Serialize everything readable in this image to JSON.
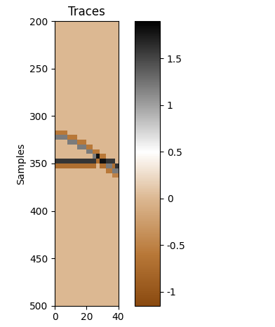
{
  "chart_data": {
    "type": "heatmap",
    "title": "Traces",
    "y_label": "Samples",
    "x_edges": [
      0,
      2,
      4,
      6,
      8,
      10,
      12,
      14,
      16,
      18,
      20,
      22,
      24,
      26,
      28,
      30,
      32,
      34,
      36,
      38,
      40
    ],
    "y_edges": [
      200,
      250,
      300,
      310,
      315,
      320,
      325,
      330,
      335,
      340,
      345,
      350,
      355,
      360,
      365,
      370,
      400,
      450,
      500
    ],
    "cells": [
      [
        0,
        0,
        0,
        0,
        0,
        0,
        0,
        0,
        0,
        0,
        0,
        0,
        0,
        0,
        0,
        0,
        0,
        0,
        0,
        0
      ],
      [
        0,
        0,
        0,
        0,
        0,
        0,
        0,
        0,
        0,
        0,
        0,
        0,
        0,
        0,
        0,
        0,
        0,
        0,
        0,
        0
      ],
      [
        0,
        0,
        0,
        0,
        0,
        0,
        0,
        0,
        0,
        0,
        0,
        0,
        0,
        0,
        0,
        0,
        0,
        0,
        0,
        0
      ],
      [
        0,
        0,
        0,
        0,
        0,
        0,
        0,
        0,
        0,
        0,
        0,
        0,
        0,
        0,
        0,
        0,
        0,
        0,
        0,
        0
      ],
      [
        -0.6,
        -0.6,
        -0.6,
        -0.6,
        0,
        0,
        0,
        0,
        0,
        0,
        0,
        0,
        0,
        0,
        0,
        0,
        0,
        0,
        0,
        0
      ],
      [
        1.2,
        1.2,
        1.2,
        1.2,
        -0.6,
        -0.6,
        -0.6,
        0,
        0,
        0,
        0,
        0,
        0,
        0,
        0,
        0,
        0,
        0,
        0,
        0
      ],
      [
        0,
        0,
        0,
        0,
        1.2,
        1.2,
        1.2,
        -0.6,
        -0.6,
        -0.6,
        0,
        0,
        0,
        0,
        0,
        0,
        0,
        0,
        0,
        0
      ],
      [
        0,
        0,
        0,
        0,
        0,
        0,
        0,
        1.2,
        1.2,
        1.2,
        -0.6,
        -0.6,
        0,
        0,
        0,
        0,
        0,
        0,
        0,
        0
      ],
      [
        0,
        0,
        0,
        0,
        0,
        0,
        0,
        0,
        0,
        0,
        1.2,
        1.2,
        -0.6,
        -0.6,
        0,
        0,
        0,
        0,
        0,
        0
      ],
      [
        0,
        0,
        0,
        0,
        0,
        0,
        0,
        0,
        0,
        0,
        0,
        0,
        1.2,
        1.8,
        -0.6,
        -0.6,
        0,
        0,
        0,
        0
      ],
      [
        1.6,
        1.6,
        1.6,
        1.6,
        1.6,
        1.6,
        1.6,
        1.6,
        1.6,
        1.6,
        1.6,
        1.6,
        1.6,
        -0.7,
        1.8,
        1.8,
        1.6,
        1.6,
        1.6,
        0
      ],
      [
        -0.7,
        -0.7,
        -0.7,
        -0.7,
        -0.7,
        -0.7,
        -0.7,
        -0.7,
        -0.7,
        -0.7,
        -0.7,
        -0.7,
        -0.7,
        0,
        -0.7,
        -0.7,
        1.2,
        1.2,
        -0.7,
        1.6
      ],
      [
        0,
        0,
        0,
        0,
        0,
        0,
        0,
        0,
        0,
        0,
        0,
        0,
        0,
        0,
        0,
        0,
        -0.6,
        -0.6,
        1.2,
        1.2
      ],
      [
        0,
        0,
        0,
        0,
        0,
        0,
        0,
        0,
        0,
        0,
        0,
        0,
        0,
        0,
        0,
        0,
        0,
        0,
        -0.5,
        -0.5
      ],
      [
        0,
        0,
        0,
        0,
        0,
        0,
        0,
        0,
        0,
        0,
        0,
        0,
        0,
        0,
        0,
        0,
        0,
        0,
        0,
        0
      ],
      [
        0,
        0,
        0,
        0,
        0,
        0,
        0,
        0,
        0,
        0,
        0,
        0,
        0,
        0,
        0,
        0,
        0,
        0,
        0,
        0
      ],
      [
        0,
        0,
        0,
        0,
        0,
        0,
        0,
        0,
        0,
        0,
        0,
        0,
        0,
        0,
        0,
        0,
        0,
        0,
        0,
        0
      ],
      [
        0,
        0,
        0,
        0,
        0,
        0,
        0,
        0,
        0,
        0,
        0,
        0,
        0,
        0,
        0,
        0,
        0,
        0,
        0,
        0
      ]
    ],
    "xlim": [
      0,
      40
    ],
    "xticks": [
      0,
      20,
      40
    ],
    "ylim": [
      500,
      200
    ],
    "yticks": [
      200,
      250,
      300,
      350,
      400,
      450,
      500
    ],
    "colorbar_range": [
      -1.15,
      1.9
    ],
    "colorbar_ticks": [
      -1,
      -0.5,
      0,
      0.5,
      1,
      1.5
    ]
  }
}
